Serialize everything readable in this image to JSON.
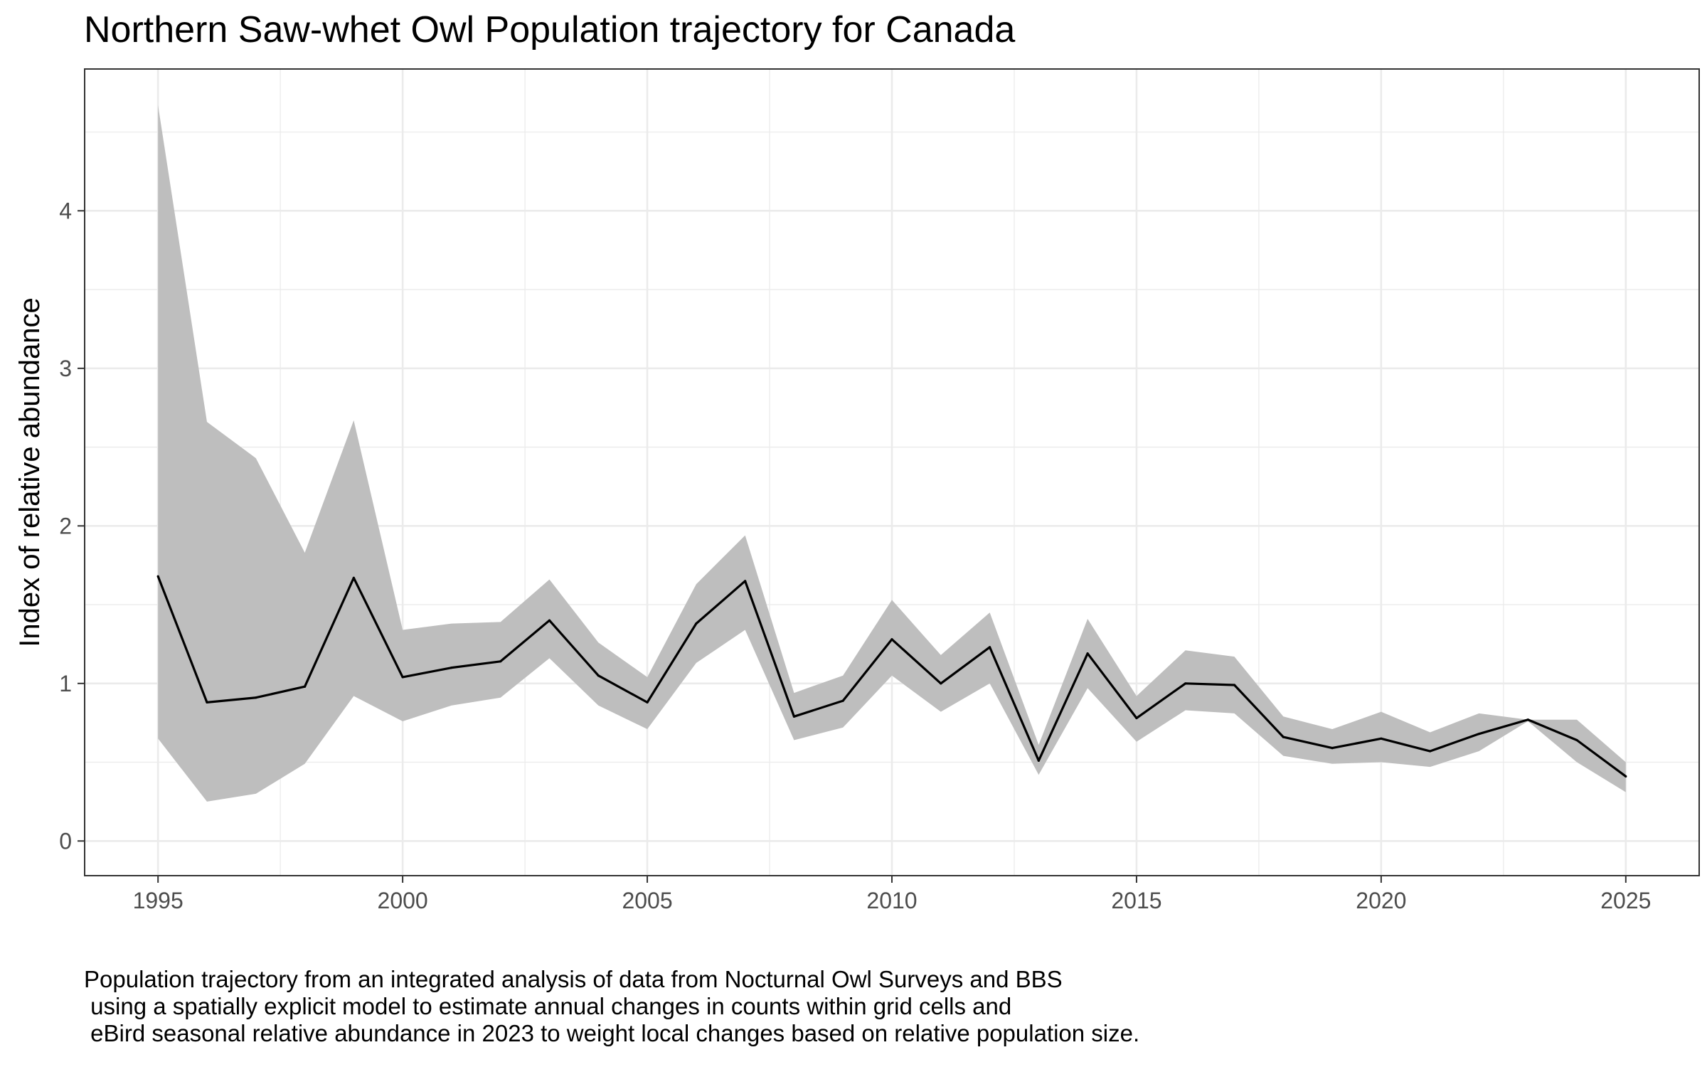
{
  "chart_data": {
    "type": "line",
    "title": "Northern Saw-whet Owl Population trajectory for Canada",
    "xlabel": "",
    "ylabel": "Index of relative abundance",
    "xlim": [
      1993.5,
      2026.5
    ],
    "ylim": [
      -0.22,
      4.9
    ],
    "x_ticks": [
      "1995",
      "2000",
      "2005",
      "2010",
      "2015",
      "2020",
      "2025"
    ],
    "y_ticks": [
      "0",
      "1",
      "2",
      "3",
      "4"
    ],
    "grid": true,
    "legend": "none",
    "colors": {
      "line": "#000000",
      "band": "#bebebe",
      "grid": "#ebebeb",
      "panel_border": "#333333"
    },
    "series": [
      {
        "x": [
          1995,
          1996,
          1997,
          1998,
          1999,
          2000,
          2001,
          2002,
          2003,
          2004,
          2005,
          2006,
          2007,
          2008,
          2009,
          2010,
          2011,
          2012,
          2013,
          2014,
          2015,
          2016,
          2017,
          2018,
          2019,
          2020,
          2021,
          2022,
          2023,
          2024,
          2025
        ],
        "y": [
          1.68,
          0.88,
          0.91,
          0.98,
          1.67,
          1.04,
          1.1,
          1.14,
          1.4,
          1.05,
          0.88,
          1.38,
          1.65,
          0.79,
          0.89,
          1.28,
          1.0,
          1.23,
          0.51,
          1.19,
          0.78,
          1.0,
          0.99,
          0.66,
          0.59,
          0.65,
          0.57,
          0.68,
          0.77,
          0.64,
          0.41
        ],
        "lower": [
          0.65,
          0.25,
          0.3,
          0.49,
          0.92,
          0.76,
          0.86,
          0.91,
          1.16,
          0.86,
          0.71,
          1.13,
          1.34,
          0.64,
          0.72,
          1.05,
          0.82,
          1.0,
          0.42,
          0.97,
          0.63,
          0.83,
          0.81,
          0.54,
          0.49,
          0.5,
          0.47,
          0.57,
          0.76,
          0.5,
          0.31
        ],
        "upper": [
          4.67,
          2.66,
          2.43,
          1.83,
          2.67,
          1.34,
          1.38,
          1.39,
          1.66,
          1.26,
          1.04,
          1.63,
          1.94,
          0.94,
          1.05,
          1.53,
          1.18,
          1.45,
          0.61,
          1.41,
          0.92,
          1.21,
          1.17,
          0.79,
          0.71,
          0.82,
          0.69,
          0.81,
          0.77,
          0.77,
          0.5
        ]
      }
    ]
  },
  "caption": {
    "line1": "Population trajectory from an integrated analysis of data from Nocturnal Owl Surveys and BBS",
    "line2": " using a spatially explicit model to estimate annual changes in counts within grid cells and",
    "line3": " eBird seasonal relative abundance in 2023 to weight local changes based on relative population size."
  }
}
